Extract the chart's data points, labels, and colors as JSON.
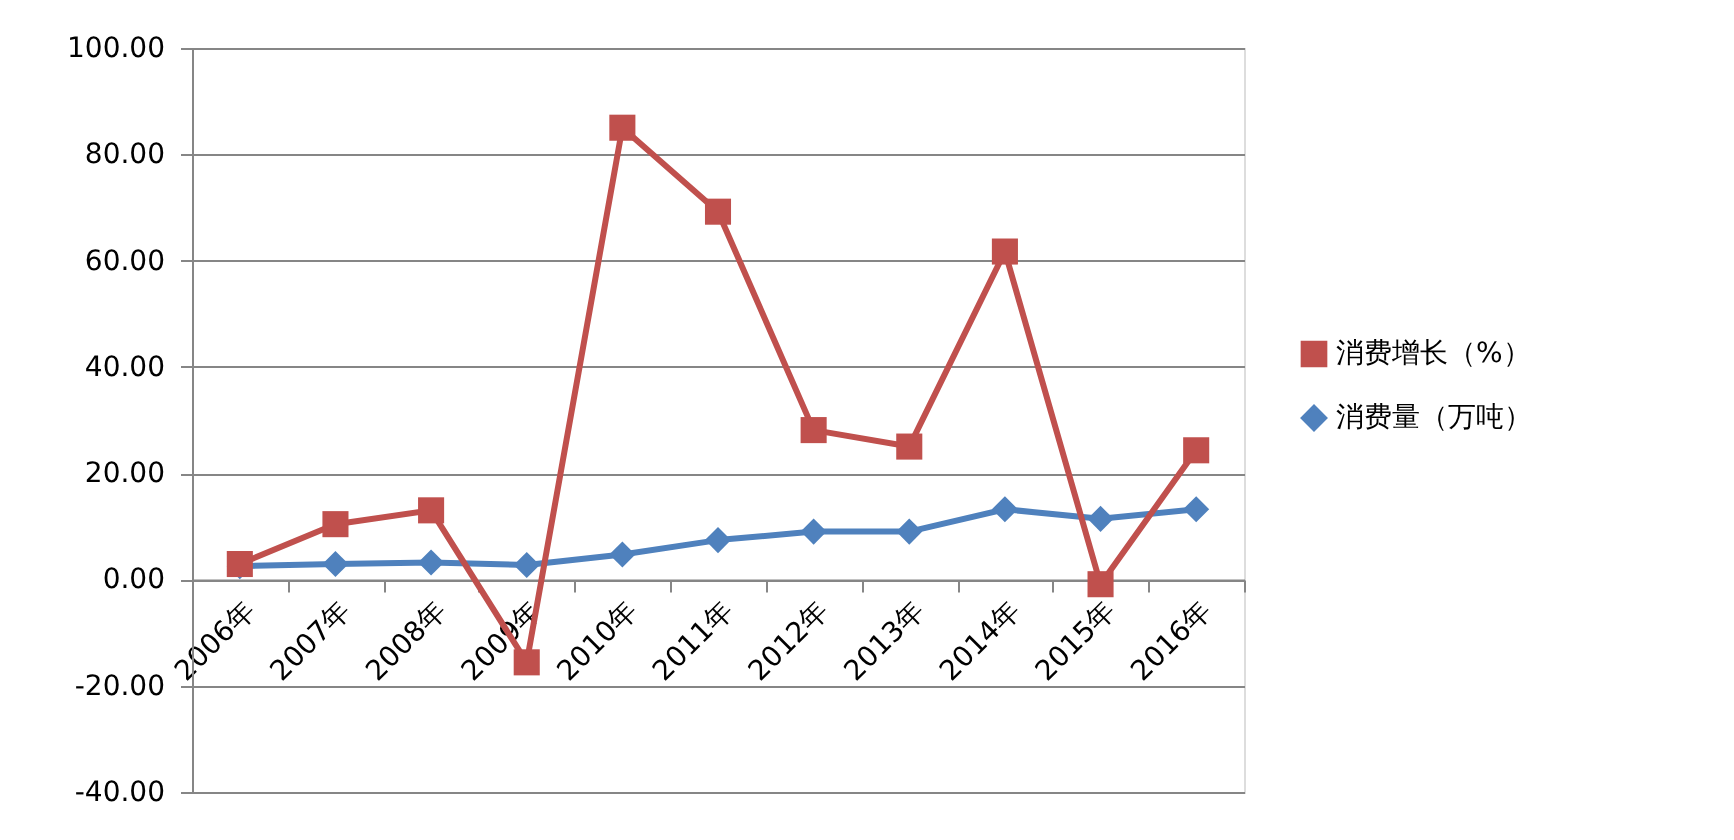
{
  "chart_data": {
    "type": "line",
    "categories": [
      "2006年",
      "2007年",
      "2008年",
      "2009年",
      "2010年",
      "2011年",
      "2012年",
      "2013年",
      "2014年",
      "2015年",
      "2016年"
    ],
    "series": [
      {
        "name": "消费增长（%）",
        "color": "#c0504d",
        "marker": "square",
        "values": [
          2.9,
          10.4,
          13.0,
          -15.6,
          85.0,
          69.2,
          28.1,
          25.0,
          61.7,
          -0.9,
          24.3
        ]
      },
      {
        "name": "消费量（万吨）",
        "color": "#4f81bd",
        "marker": "diamond",
        "values": [
          2.5,
          2.9,
          3.2,
          2.7,
          4.7,
          7.4,
          9.0,
          9.0,
          13.2,
          11.4,
          13.2
        ]
      }
    ],
    "ylim": [
      -40,
      100
    ],
    "yticks": [
      {
        "value": -40,
        "label": "-40.00"
      },
      {
        "value": -20,
        "label": "-20.00"
      },
      {
        "value": 0,
        "label": "0.00"
      },
      {
        "value": 20,
        "label": "20.00"
      },
      {
        "value": 40,
        "label": "40.00"
      },
      {
        "value": 60,
        "label": "60.00"
      },
      {
        "value": 80,
        "label": "80.00"
      },
      {
        "value": 100,
        "label": "100.00"
      }
    ],
    "grid": "y",
    "legend": "right",
    "line_style": "solid"
  }
}
